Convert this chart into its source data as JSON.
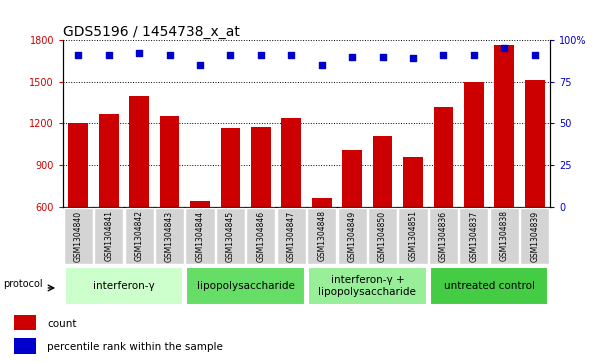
{
  "title": "GDS5196 / 1454738_x_at",
  "samples": [
    "GSM1304840",
    "GSM1304841",
    "GSM1304842",
    "GSM1304843",
    "GSM1304844",
    "GSM1304845",
    "GSM1304846",
    "GSM1304847",
    "GSM1304848",
    "GSM1304849",
    "GSM1304850",
    "GSM1304851",
    "GSM1304836",
    "GSM1304837",
    "GSM1304838",
    "GSM1304839"
  ],
  "counts": [
    1205,
    1270,
    1395,
    1250,
    640,
    1165,
    1175,
    1240,
    665,
    1010,
    1110,
    960,
    1320,
    1500,
    1760,
    1510
  ],
  "percentile_ranks": [
    91,
    91,
    92,
    91,
    85,
    91,
    91,
    91,
    85,
    90,
    90,
    89,
    91,
    91,
    95,
    91
  ],
  "groups": [
    {
      "label": "interferon-γ",
      "start": 0,
      "end": 4,
      "color": "#ccffcc"
    },
    {
      "label": "lipopolysaccharide",
      "start": 4,
      "end": 8,
      "color": "#66dd66"
    },
    {
      "label": "interferon-γ +\nlipopolysaccharide",
      "start": 8,
      "end": 12,
      "color": "#99ee99"
    },
    {
      "label": "untreated control",
      "start": 12,
      "end": 16,
      "color": "#44cc44"
    }
  ],
  "ylim_left": [
    600,
    1800
  ],
  "ylim_right": [
    0,
    100
  ],
  "yticks_left": [
    600,
    900,
    1200,
    1500,
    1800
  ],
  "yticks_right": [
    0,
    25,
    50,
    75,
    100
  ],
  "bar_color": "#cc0000",
  "dot_color": "#0000cc",
  "plot_bg": "#ffffff",
  "title_fontsize": 10,
  "tick_fontsize": 7,
  "sample_fontsize": 5.5,
  "group_fontsize": 7.5,
  "legend_fontsize": 7.5
}
